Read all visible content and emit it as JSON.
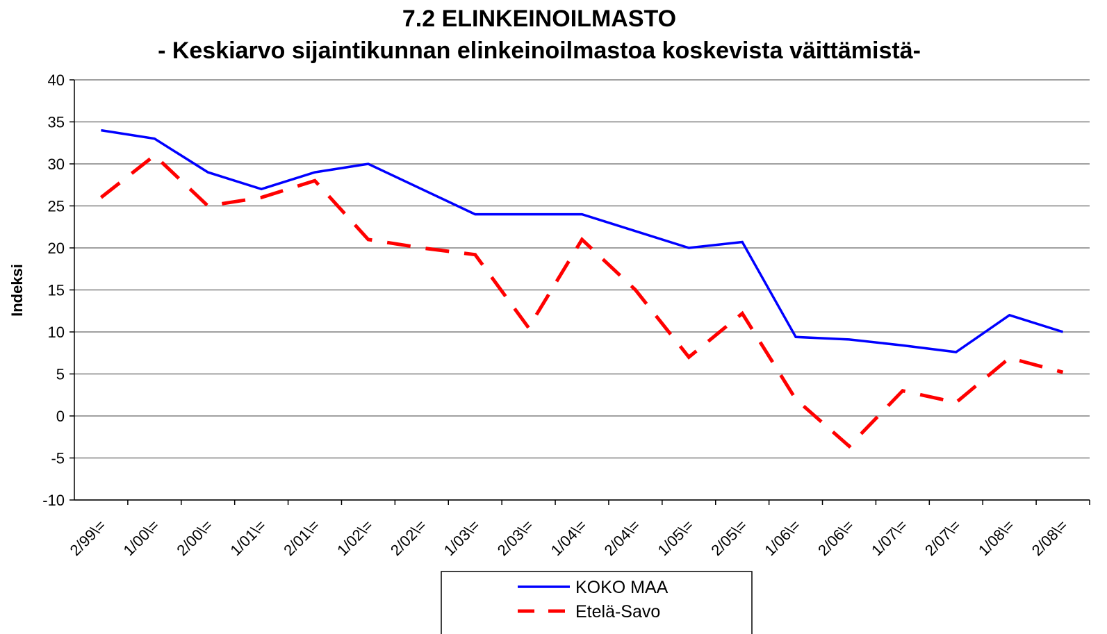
{
  "chart_data": {
    "type": "line",
    "title": "7.2 ELINKEINOILMASTO",
    "subtitle": "- Keskiarvo sijaintikunnan elinkeinoilmastoa koskevista väittämistä-",
    "y_label": "Indeksi",
    "categories": [
      "2/99\\=",
      "1/00\\=",
      "2/00\\=",
      "1/01\\=",
      "2/01\\=",
      "1/02\\=",
      "2/02\\=",
      "1/03\\=",
      "2/03\\=",
      "1/04\\=",
      "2/04\\=",
      "1/05\\=",
      "2/05\\=",
      "1/06\\=",
      "2/06\\=",
      "1/07\\=",
      "2/07\\=",
      "1/08\\=",
      "2/08\\="
    ],
    "series": [
      {
        "name": "KOKO MAA",
        "color": "#0000ff",
        "dash": false,
        "values": [
          34,
          33,
          29,
          27,
          29,
          30,
          27,
          24,
          24,
          24,
          22,
          20,
          20.7,
          9.4,
          9.1,
          8.4,
          7.6,
          12,
          10
        ]
      },
      {
        "name": "Etelä-Savo",
        "color": "#ff0000",
        "dash": true,
        "values": [
          26,
          31,
          25,
          26,
          28,
          21,
          20,
          19.2,
          10.5,
          21,
          15,
          7,
          12.2,
          2,
          -3.6,
          3,
          1.6,
          6.9,
          5.2
        ]
      }
    ],
    "ylim": [
      -10,
      40
    ],
    "yticks": [
      -10,
      -5,
      0,
      5,
      10,
      15,
      20,
      25,
      30,
      35,
      40
    ],
    "grid": true
  }
}
